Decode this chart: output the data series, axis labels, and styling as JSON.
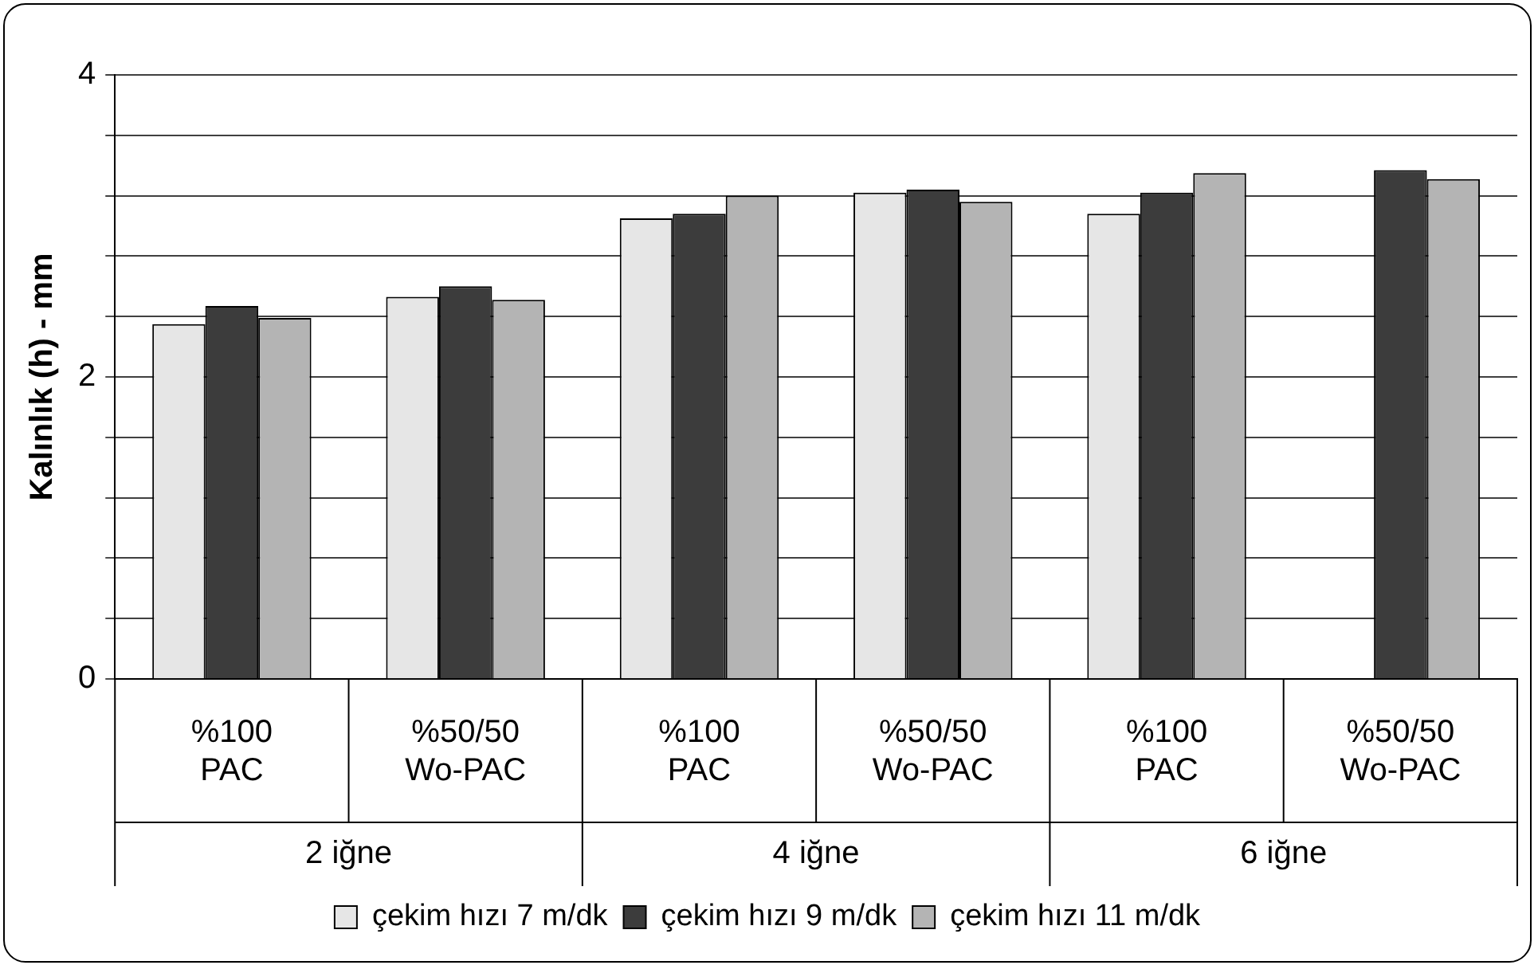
{
  "chart_data": {
    "type": "bar",
    "ylabel": "Kalınlık (h) - mm",
    "categories": [
      "%100 PAC",
      "%50/50 Wo-PAC",
      "%100 PAC",
      "%50/50 Wo-PAC",
      "%100 PAC",
      "%50/50 Wo-PAC"
    ],
    "annotations": [
      "2 iğne",
      "4 iğne",
      "6 iğne"
    ],
    "series": [
      {
        "name": "çekim hızı 7 m/dk",
        "color": "#e6e6e6",
        "values": [
          2.35,
          2.53,
          3.05,
          3.22,
          3.08,
          null
        ]
      },
      {
        "name": "çekim hızı 9 m/dk",
        "color": "#3c3c3c",
        "values": [
          2.47,
          2.6,
          3.08,
          3.24,
          3.22,
          3.37
        ]
      },
      {
        "name": "çekim hızı 11 m/dk",
        "color": "#b4b4b4",
        "values": [
          2.39,
          2.51,
          3.2,
          3.16,
          3.35,
          3.31
        ]
      }
    ],
    "ylim": [
      0,
      4
    ],
    "yticks": [
      0,
      {
        "value": 0.4,
        "label": null
      },
      {
        "value": 0.8,
        "label": null
      },
      {
        "value": 1.2,
        "label": null
      },
      {
        "value": 1.6,
        "label": null
      },
      2,
      {
        "value": 2.4,
        "label": null
      },
      {
        "value": 2.8,
        "label": null
      },
      {
        "value": 3.2,
        "label": null
      },
      {
        "value": 3.6,
        "label": null
      },
      4
    ],
    "grid": "y",
    "legend": "bottom"
  }
}
